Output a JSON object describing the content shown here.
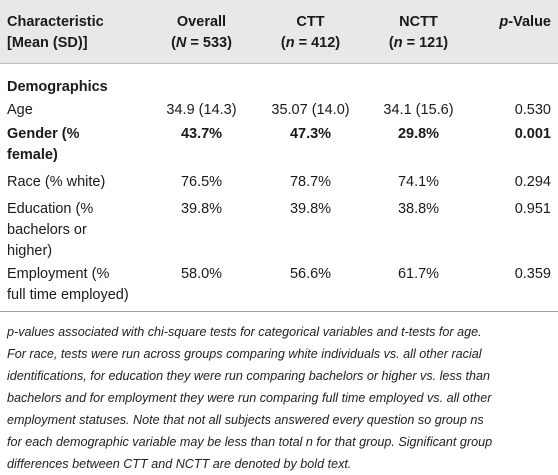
{
  "header": {
    "characteristic_line1": "Characteristic",
    "characteristic_line2": "[Mean (SD)]",
    "overall_label": "Overall",
    "overall_n_prefix": "(",
    "overall_n_var": "N",
    "overall_n_value": " = 533)",
    "ctt_label": "CTT",
    "ctt_n_prefix": "(",
    "ctt_n_var": "n",
    "ctt_n_value": " = 412)",
    "nctt_label": "NCTT",
    "nctt_n_prefix": "(",
    "nctt_n_var": "n",
    "nctt_n_value": " = 121)",
    "p_prefix": "p",
    "p_suffix": "-Value"
  },
  "section": {
    "title": "Demographics"
  },
  "rows": [
    {
      "label_lines": [
        "Age"
      ],
      "overall": "34.9 (14.3)",
      "ctt": "35.07 (14.0)",
      "nctt": "34.1 (15.6)",
      "p": "0.530",
      "bold": false
    },
    {
      "label_lines": [
        "Gender (%",
        "female)"
      ],
      "overall": "43.7%",
      "ctt": "47.3%",
      "nctt": "29.8%",
      "p": "0.001",
      "bold": true
    },
    {
      "label_lines": [
        "Race (% white)"
      ],
      "overall": "76.5%",
      "ctt": "78.7%",
      "nctt": "74.1%",
      "p": "0.294",
      "bold": false
    },
    {
      "label_lines": [
        "Education (%",
        "bachelors or",
        "higher)"
      ],
      "overall": "39.8%",
      "ctt": "39.8%",
      "nctt": "38.8%",
      "p": "0.951",
      "bold": false
    },
    {
      "label_lines": [
        "Employment (%",
        "full time employed)"
      ],
      "overall": "58.0%",
      "ctt": "56.6%",
      "nctt": "61.7%",
      "p": "0.359",
      "bold": false
    }
  ],
  "note": {
    "lines": [
      "p-values associated with chi-square tests for categorical variables and t-tests for age.",
      "For race, tests were run across groups comparing white individuals vs. all other racial",
      "identifications, for education they were run comparing bachelors or higher vs. less than",
      "bachelors and for employment they were run comparing full time employed vs. all other",
      "employment statuses. Note that not all subjects answered every question so group ns",
      "for each demographic variable may be less than total n for that group. Significant group",
      "differences between CTT and NCTT are denoted by bold text."
    ]
  }
}
